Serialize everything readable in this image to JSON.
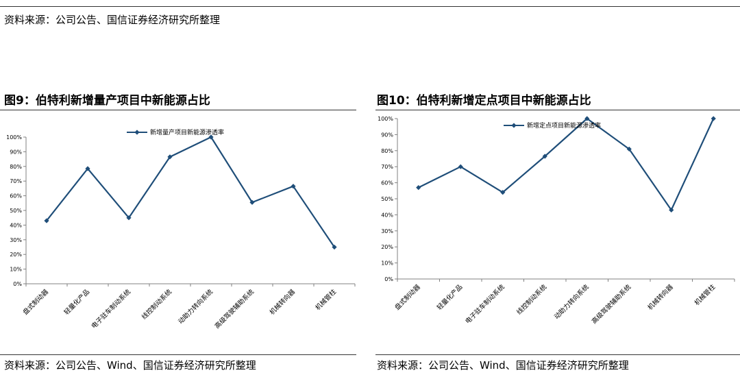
{
  "top_source": "资料来源：公司公告、国信证券经济研究所整理",
  "charts": [
    {
      "title": "图9：伯特利新增量产项目中新能源占比",
      "source": "资料来源：公司公告、Wind、国信证券经济研究所整理"
    },
    {
      "title": "图10：伯特利新增定点项目中新能源占比",
      "source": "资料来源：公司公告、Wind、国信证券经济研究所整理"
    }
  ],
  "colors": {
    "series": "#1f4e79",
    "axis": "#808080"
  },
  "chart_data": [
    {
      "type": "line",
      "categories": [
        "盘式制动器",
        "轻量化产品",
        "电子驻车制动系统",
        "线控制动系统",
        "动助力转向系统",
        "高级驾驶辅助系统",
        "机械转向器",
        "机械管柱"
      ],
      "series": [
        {
          "name": "新增量产项目新能源渗透率",
          "values": [
            43,
            78.5,
            45,
            86.5,
            100,
            55.5,
            66.5,
            25
          ]
        }
      ],
      "ylim": [
        0,
        100
      ],
      "yticks": [
        "0%",
        "10%",
        "20%",
        "30%",
        "40%",
        "50%",
        "60%",
        "70%",
        "80%",
        "90%",
        "100%"
      ],
      "legend": "top-center",
      "grid": false
    },
    {
      "type": "line",
      "categories": [
        "盘式制动器",
        "轻量化产品",
        "电子驻车制动系统",
        "线控制动系统",
        "动助力转向系统",
        "高级驾驶辅助系统",
        "机械转向器",
        "机械管柱"
      ],
      "series": [
        {
          "name": "新增定点项目新能源渗透率",
          "values": [
            57,
            70,
            54,
            76.5,
            100,
            81,
            43,
            100
          ]
        }
      ],
      "ylim": [
        0,
        100
      ],
      "yticks": [
        "0%",
        "10%",
        "20%",
        "30%",
        "40%",
        "50%",
        "60%",
        "70%",
        "80%",
        "90%",
        "100%"
      ],
      "legend": "top-center",
      "grid": false
    }
  ]
}
